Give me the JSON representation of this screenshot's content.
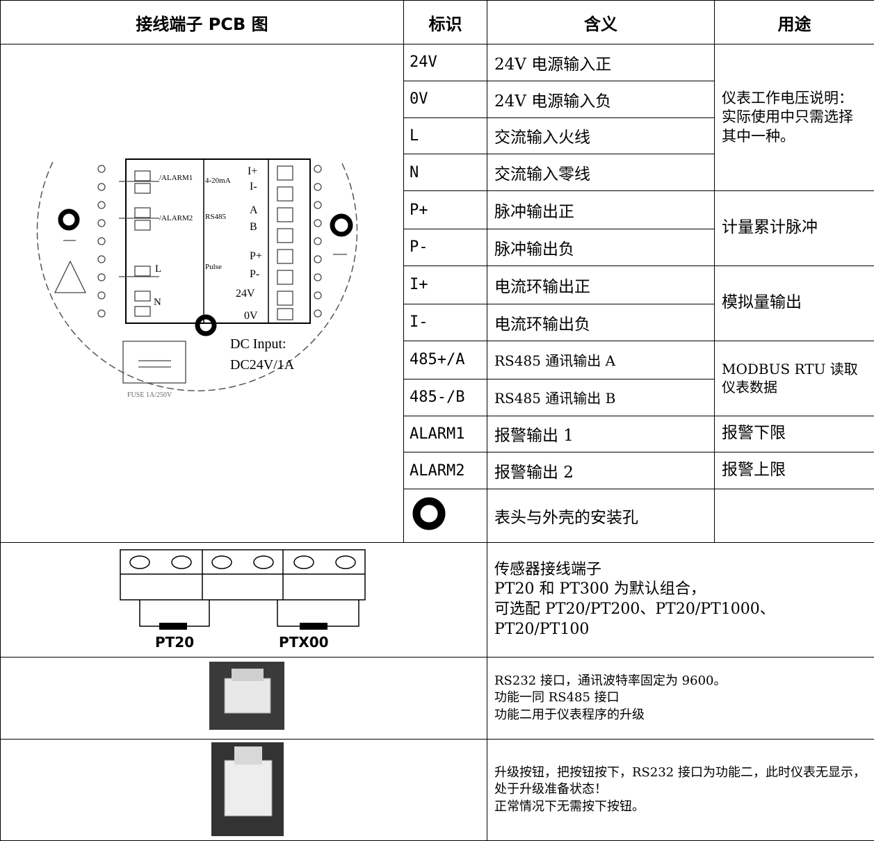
{
  "header": [
    "接线端子 PCB 图",
    "标识",
    "含义",
    "用途"
  ],
  "rows": [
    {
      "label": "24V",
      "meaning": "24V 电源输入正"
    },
    {
      "label": "0V",
      "meaning": "24V 电源输入负"
    },
    {
      "label": "L",
      "meaning": "交流输入火线"
    },
    {
      "label": "N",
      "meaning": "交流输入零线"
    },
    {
      "label": "P+",
      "meaning": "脉冲输出正"
    },
    {
      "label": "P-",
      "meaning": "脉冲输出负"
    },
    {
      "label": "I+",
      "meaning": "电流环输出正"
    },
    {
      "label": "I-",
      "meaning": "电流环输出负"
    },
    {
      "label": "485+/A",
      "meaning": "RS485 通讯输出 A"
    },
    {
      "label": "485-/B",
      "meaning": "RS485 通讯输出 B"
    },
    {
      "label": "ALARM1",
      "meaning": "报警输出 1"
    },
    {
      "label": "ALARM2",
      "meaning": "报警输出 2"
    },
    {
      "meaning": "表头与外壳的安装孔"
    }
  ],
  "usages": [
    "仪表工作电压说明：实际使用中只需选择其中一种。",
    "计量累计脉冲",
    "模拟量输出",
    "MODBUS RTU 读取仪表数据",
    "报警下限",
    "报警上限"
  ],
  "pcb": {
    "labels": [
      "/ALARM1",
      "/ALARM2",
      "4-20mA",
      "I+",
      "I-",
      "RS485",
      "A",
      "B",
      "Pulse",
      "P+",
      "P-",
      "24V",
      "0V",
      "L",
      "N",
      "DC Input:",
      "DC24V/1A",
      "FUSE 1A/250V"
    ]
  },
  "sensor": {
    "labels": [
      "PT20",
      "PTX00"
    ],
    "lines": [
      "传感器接线端子",
      "PT20 和 PT300 为默认组合，",
      "可选配 PT20/PT200、PT20/PT1000、PT20/PT100"
    ]
  },
  "rs232": {
    "lines": [
      "RS232 接口，通讯波特率固定为 9600。",
      "功能一同 RS485 接口",
      "功能二用于仪表程序的升级"
    ]
  },
  "button": {
    "lines": [
      "升级按钮，把按钮按下，RS232 接口为功能二，此时仪表无显示，处于升级准备状态！",
      "正常情况下无需按下按钮。"
    ]
  }
}
